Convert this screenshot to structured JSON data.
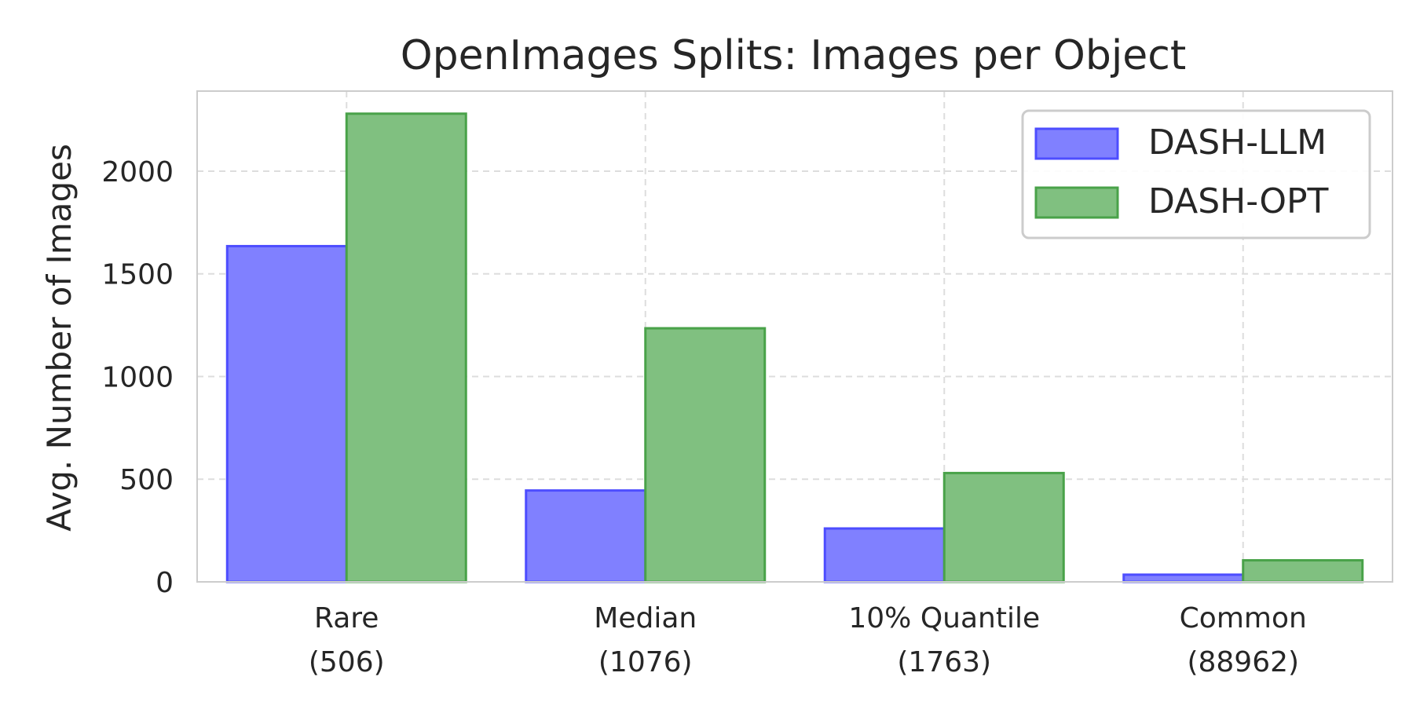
{
  "chart_data": {
    "type": "bar",
    "title": "OpenImages Splits: Images per Object",
    "xlabel": "",
    "ylabel": "Avg. Number of Images",
    "categories": [
      [
        "Rare",
        "(506)"
      ],
      [
        "Median",
        "(1076)"
      ],
      [
        "10% Quantile",
        "(1763)"
      ],
      [
        "Common",
        "(88962)"
      ]
    ],
    "series": [
      {
        "name": "DASH-LLM",
        "values": [
          1635,
          445,
          260,
          35
        ],
        "fill": "#8080ff",
        "stroke": "#4d4dff"
      },
      {
        "name": "DASH-OPT",
        "values": [
          2280,
          1235,
          530,
          105
        ],
        "fill": "#80c080",
        "stroke": "#49a249"
      }
    ],
    "ylim": [
      0,
      2390
    ],
    "yticks": [
      0,
      500,
      1000,
      1500,
      2000
    ],
    "grid": true,
    "legend_position": "top-right"
  }
}
